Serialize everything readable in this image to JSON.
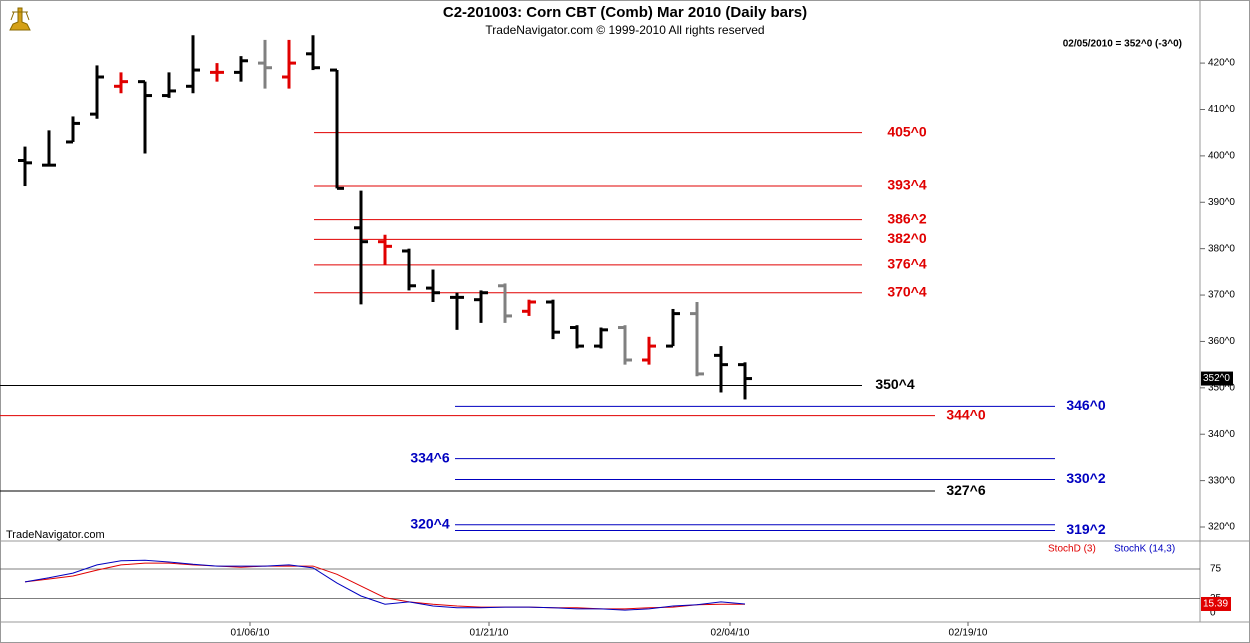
{
  "header": {
    "title": "C2-201003:  Corn CBT (Comb) Mar 2010  (Daily bars)",
    "subtitle": "TradeNavigator.com © 1999-2010 All rights reserved",
    "quote": "02/05/2010 = 352^0 (-3^0)",
    "watermark": "TradeNavigator.com"
  },
  "chart_data": [
    {
      "type": "ohlc",
      "open": [
        399,
        398,
        403,
        409,
        415,
        416,
        413,
        415,
        418,
        418,
        420,
        417,
        422,
        418.5,
        384.5,
        381.5,
        379.5,
        371.5,
        369.5,
        369,
        372,
        366.5,
        368.5,
        363,
        359,
        363,
        356,
        359,
        366,
        357,
        355
      ],
      "high": [
        402,
        405.5,
        408.5,
        419.5,
        418,
        416,
        418,
        426,
        420,
        421.5,
        425,
        425,
        426,
        418.5,
        392.5,
        383,
        380,
        375.5,
        370.5,
        371,
        372.5,
        369,
        369,
        363.5,
        363,
        363.5,
        361,
        367,
        368.5,
        359,
        355.5
      ],
      "low": [
        393.5,
        398,
        403,
        408,
        413.5,
        400.5,
        412.5,
        413.5,
        416,
        416,
        414.5,
        414.5,
        418.5,
        393,
        368,
        376.5,
        371,
        368.5,
        362.5,
        364,
        364,
        365.5,
        360.5,
        358.5,
        358.5,
        355,
        355,
        359,
        352.5,
        349,
        347.5
      ],
      "close": [
        398.5,
        398,
        407,
        417,
        416,
        413,
        414,
        418.5,
        418,
        420.5,
        419,
        420,
        419,
        393,
        381.5,
        380.5,
        372,
        370.5,
        369.5,
        370.5,
        365.5,
        368.5,
        362,
        359,
        362.5,
        356,
        359,
        366,
        353,
        355,
        352
      ],
      "colors": [
        "#000000",
        "#000000",
        "#000000",
        "#000000",
        "#e00000",
        "#000000",
        "#000000",
        "#000000",
        "#e00000",
        "#000000",
        "#808080",
        "#e00000",
        "#000000",
        "#000000",
        "#000000",
        "#e00000",
        "#000000",
        "#000000",
        "#000000",
        "#000000",
        "#808080",
        "#e00000",
        "#000000",
        "#000000",
        "#000000",
        "#808080",
        "#e00000",
        "#000000",
        "#808080",
        "#000000",
        "#000000"
      ],
      "ylim": [
        317.2,
        433.6
      ],
      "yticks": [
        {
          "value": 320,
          "label": "320^0"
        },
        {
          "value": 330,
          "label": "330^0"
        },
        {
          "value": 340,
          "label": "340^0"
        },
        {
          "value": 350,
          "label": "350^0"
        },
        {
          "value": 360,
          "label": "360^0"
        },
        {
          "value": 370,
          "label": "370^0"
        },
        {
          "value": 380,
          "label": "380^0"
        },
        {
          "value": 390,
          "label": "390^0"
        },
        {
          "value": 400,
          "label": "400^0"
        },
        {
          "value": 410,
          "label": "410^0"
        },
        {
          "value": 420,
          "label": "420^0"
        }
      ],
      "levels": [
        {
          "value": 405,
          "label": "405^0",
          "color": "#e00000"
        },
        {
          "value": 393.5,
          "label": "393^4",
          "color": "#e00000"
        },
        {
          "value": 386.25,
          "label": "386^2",
          "color": "#e00000"
        },
        {
          "value": 382,
          "label": "382^0",
          "color": "#e00000"
        },
        {
          "value": 376.5,
          "label": "376^4",
          "color": "#e00000"
        },
        {
          "value": 370.5,
          "label": "370^4",
          "color": "#e00000"
        },
        {
          "value": 350.5,
          "label": "350^4",
          "color": "#000000"
        },
        {
          "value": 346,
          "label": "346^0",
          "color": "#0000c0"
        },
        {
          "value": 344,
          "label": "344^0",
          "color": "#e00000"
        },
        {
          "value": 334.75,
          "label": "334^6",
          "color": "#0000c0"
        },
        {
          "value": 330.25,
          "label": "330^2",
          "color": "#0000c0"
        },
        {
          "value": 327.75,
          "label": "327^6",
          "color": "#000000"
        },
        {
          "value": 320.5,
          "label": "320^4",
          "color": "#0000c0"
        },
        {
          "value": 319.25,
          "label": "319^2",
          "color": "#0000c0"
        }
      ],
      "last": {
        "value": 352,
        "label": "352^0"
      },
      "xticks": [
        "01/06/10",
        "01/21/10",
        "02/04/10",
        "02/19/10"
      ]
    },
    {
      "type": "line",
      "series": [
        {
          "name": "StochD (3)",
          "color": "#e00000",
          "values": [
            53,
            58,
            63,
            73,
            82,
            85,
            85,
            82,
            80,
            78,
            80,
            80,
            80,
            66,
            46,
            26,
            19,
            15,
            12,
            10,
            10,
            10,
            9,
            9,
            7,
            7,
            9,
            10,
            14,
            15,
            15
          ]
        },
        {
          "name": "StochK (14,3)",
          "color": "#0000c0",
          "values": [
            53,
            60,
            68,
            82,
            89,
            90,
            87,
            83,
            80,
            80,
            80,
            82,
            77,
            51,
            29,
            15,
            19,
            12,
            9,
            9,
            10,
            10,
            9,
            7,
            7,
            5,
            7,
            12,
            14,
            19,
            15.39
          ]
        }
      ],
      "ylim": [
        -15.3,
        122.7
      ],
      "yticks": [
        0,
        25,
        75
      ],
      "last": {
        "value": 15.39,
        "label": "15.39"
      }
    }
  ]
}
